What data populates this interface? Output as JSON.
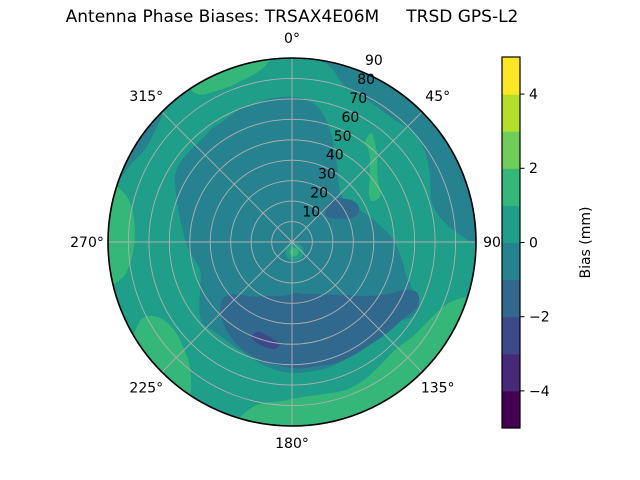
{
  "figure": {
    "background": "#ffffff"
  },
  "chart_data": {
    "type": "polar_contour",
    "title": "Antenna Phase Biases: TRSAX4E06M     TRSD GPS-L2",
    "angular_ticks": [
      {
        "deg": 0,
        "label": "0°"
      },
      {
        "deg": 45,
        "label": "45°"
      },
      {
        "deg": 90,
        "label": "90"
      },
      {
        "deg": 135,
        "label": "135°"
      },
      {
        "deg": 180,
        "label": "180°"
      },
      {
        "deg": 225,
        "label": "225°"
      },
      {
        "deg": 270,
        "label": "270°"
      },
      {
        "deg": 315,
        "label": "315°"
      }
    ],
    "radial_ticks": [
      {
        "value": 10,
        "label": "10"
      },
      {
        "value": 20,
        "label": "20"
      },
      {
        "value": 30,
        "label": "30"
      },
      {
        "value": 40,
        "label": "40"
      },
      {
        "value": 50,
        "label": "50"
      },
      {
        "value": 60,
        "label": "60"
      },
      {
        "value": 70,
        "label": "70"
      },
      {
        "value": 80,
        "label": "80"
      },
      {
        "value": 90,
        "label": "90"
      }
    ],
    "radial_max": 90,
    "radial_label_azimuth_deg": 22.5,
    "grid_color": "#b0b0b0",
    "outline_color": "#000000",
    "colorbar": {
      "label": "Bias (mm)",
      "min": -5,
      "max": 5,
      "ticks": [
        {
          "value": 4,
          "label": "4"
        },
        {
          "value": 2,
          "label": "2"
        },
        {
          "value": 0,
          "label": "0"
        },
        {
          "value": -2,
          "label": "−2"
        },
        {
          "value": -4,
          "label": "−4"
        }
      ],
      "segments_bottom_to_top": [
        {
          "range": "-5 to -4 mm",
          "color": "#440154"
        },
        {
          "range": "-4 to -3 mm",
          "color": "#482878"
        },
        {
          "range": "-3 to -2 mm",
          "color": "#3e4989"
        },
        {
          "range": "-2 to -1 mm",
          "color": "#31688e"
        },
        {
          "range": "-1 to 0 mm",
          "color": "#26828e"
        },
        {
          "range": "0 to 1 mm",
          "color": "#1f9e89"
        },
        {
          "range": "1 to 2 mm",
          "color": "#35b779"
        },
        {
          "range": "2 to 3 mm",
          "color": "#6ece58"
        },
        {
          "range": "3 to 4 mm",
          "color": "#b5de2b"
        },
        {
          "range": "4 to 5 mm",
          "color": "#fde725"
        }
      ]
    },
    "regions": [
      {
        "name": "base-disk",
        "value_range": "-1 to 0 mm",
        "color": "#26828e",
        "type": "disk"
      },
      {
        "name": "bright-ring",
        "value_range": "0 to 1 mm",
        "color": "#1f9e89",
        "type": "ring",
        "outer": [
          [
            0,
            90
          ],
          [
            8,
            90
          ],
          [
            13,
            87
          ],
          [
            18,
            81
          ],
          [
            25,
            79
          ],
          [
            32,
            78
          ],
          [
            40,
            78
          ],
          [
            48,
            80
          ],
          [
            55,
            79
          ],
          [
            62,
            76
          ],
          [
            68,
            73
          ],
          [
            74,
            71
          ],
          [
            80,
            73
          ],
          [
            85,
            78
          ],
          [
            89,
            85
          ],
          [
            93,
            90
          ],
          [
            115,
            90
          ],
          [
            140,
            90
          ],
          [
            165,
            90
          ],
          [
            190,
            90
          ],
          [
            215,
            90
          ],
          [
            240,
            90
          ],
          [
            265,
            90
          ],
          [
            285,
            90
          ],
          [
            294,
            88
          ],
          [
            299,
            86
          ],
          [
            303,
            85
          ],
          [
            308,
            86
          ],
          [
            313,
            88
          ],
          [
            318,
            90
          ],
          [
            330,
            90
          ],
          [
            342,
            90
          ],
          [
            352,
            90
          ]
        ],
        "inner": [
          [
            0,
            71
          ],
          [
            8,
            69
          ],
          [
            14,
            64
          ],
          [
            20,
            56
          ],
          [
            26,
            48
          ],
          [
            32,
            42
          ],
          [
            38,
            37
          ],
          [
            44,
            34
          ],
          [
            50,
            33
          ],
          [
            56,
            34
          ],
          [
            62,
            36
          ],
          [
            68,
            38
          ],
          [
            74,
            41
          ],
          [
            80,
            44
          ],
          [
            86,
            48
          ],
          [
            92,
            51
          ],
          [
            100,
            55
          ],
          [
            106,
            58
          ],
          [
            112,
            64
          ],
          [
            117,
            70
          ],
          [
            122,
            69
          ],
          [
            127,
            65
          ],
          [
            133,
            62
          ],
          [
            140,
            62
          ],
          [
            148,
            63
          ],
          [
            156,
            63
          ],
          [
            164,
            64
          ],
          [
            172,
            64
          ],
          [
            180,
            64
          ],
          [
            188,
            63
          ],
          [
            196,
            61
          ],
          [
            204,
            59
          ],
          [
            212,
            58
          ],
          [
            220,
            58
          ],
          [
            228,
            59
          ],
          [
            234,
            56
          ],
          [
            240,
            52
          ],
          [
            246,
            49
          ],
          [
            252,
            47
          ],
          [
            258,
            48
          ],
          [
            264,
            50
          ],
          [
            270,
            52
          ],
          [
            277,
            54
          ],
          [
            284,
            57
          ],
          [
            290,
            60
          ],
          [
            295,
            63
          ],
          [
            300,
            66
          ],
          [
            305,
            67
          ],
          [
            310,
            67
          ],
          [
            315,
            67
          ],
          [
            320,
            67
          ],
          [
            325,
            68
          ],
          [
            330,
            68
          ],
          [
            335,
            69
          ],
          [
            340,
            70
          ],
          [
            346,
            70
          ],
          [
            352,
            71
          ]
        ]
      },
      {
        "name": "blue-crescent",
        "value_range": "-2 to -1 mm",
        "color": "#31688e",
        "type": "blob",
        "points": [
          [
            112,
            66
          ],
          [
            116,
            69
          ],
          [
            120,
            68
          ],
          [
            125,
            66
          ],
          [
            130,
            65
          ],
          [
            136,
            64
          ],
          [
            144,
            63
          ],
          [
            152,
            63
          ],
          [
            160,
            63
          ],
          [
            168,
            62
          ],
          [
            176,
            62
          ],
          [
            184,
            61
          ],
          [
            192,
            60
          ],
          [
            200,
            59
          ],
          [
            208,
            57
          ],
          [
            216,
            54
          ],
          [
            224,
            50
          ],
          [
            230,
            45
          ],
          [
            230,
            40
          ],
          [
            224,
            36
          ],
          [
            216,
            33
          ],
          [
            208,
            30
          ],
          [
            200,
            28
          ],
          [
            192,
            27
          ],
          [
            184,
            26
          ],
          [
            176,
            25
          ],
          [
            168,
            26
          ],
          [
            160,
            27
          ],
          [
            152,
            29
          ],
          [
            144,
            32
          ],
          [
            136,
            36
          ],
          [
            130,
            41
          ],
          [
            124,
            47
          ],
          [
            118,
            54
          ],
          [
            113,
            60
          ]
        ]
      },
      {
        "name": "blue-blob-upper-right",
        "value_range": "-2 to -1 mm",
        "color": "#31688e",
        "type": "blob",
        "points": [
          [
            44,
            26
          ],
          [
            48,
            22
          ],
          [
            54,
            21
          ],
          [
            60,
            23
          ],
          [
            65,
            27
          ],
          [
            68,
            31
          ],
          [
            67,
            35
          ],
          [
            62,
            37
          ],
          [
            56,
            36
          ],
          [
            50,
            33
          ],
          [
            45,
            30
          ]
        ]
      },
      {
        "name": "dark-spot-bottom",
        "value_range": "-3 to -2 mm",
        "color": "#3e4989",
        "type": "blob",
        "points": [
          [
            187,
            50
          ],
          [
            192,
            48
          ],
          [
            197,
            47
          ],
          [
            201,
            47
          ],
          [
            203,
            50
          ],
          [
            200,
            52
          ],
          [
            194,
            53
          ],
          [
            189,
            53
          ]
        ]
      },
      {
        "name": "green-upper-left-rim",
        "value_range": "1 to 2 mm",
        "color": "#35b779",
        "type": "blob",
        "points": [
          [
            327,
            90
          ],
          [
            328,
            85
          ],
          [
            332,
            83
          ],
          [
            338,
            82
          ],
          [
            344,
            83
          ],
          [
            349,
            85
          ],
          [
            352,
            88
          ],
          [
            353,
            91
          ],
          [
            344,
            92
          ],
          [
            335,
            92
          ]
        ]
      },
      {
        "name": "green-upper-right-band",
        "value_range": "1 to 2 mm",
        "color": "#35b779",
        "type": "blob",
        "points": [
          [
            36,
            66
          ],
          [
            40,
            63
          ],
          [
            44,
            60
          ],
          [
            48,
            56
          ],
          [
            52,
            53
          ],
          [
            56,
            51
          ],
          [
            60,
            50
          ],
          [
            63,
            48
          ],
          [
            63,
            44
          ],
          [
            59,
            44
          ],
          [
            55,
            46
          ],
          [
            51,
            49
          ],
          [
            47,
            52
          ],
          [
            43,
            56
          ],
          [
            39,
            59
          ],
          [
            36,
            61
          ]
        ]
      },
      {
        "name": "green-bottom-rim-band",
        "value_range": "1 to 2 mm",
        "color": "#35b779",
        "type": "blob",
        "points": [
          [
            108,
            92
          ],
          [
            110,
            84
          ],
          [
            114,
            80
          ],
          [
            120,
            77
          ],
          [
            128,
            75
          ],
          [
            136,
            73
          ],
          [
            144,
            74
          ],
          [
            152,
            76
          ],
          [
            160,
            77
          ],
          [
            168,
            76
          ],
          [
            176,
            76
          ],
          [
            184,
            78
          ],
          [
            190,
            80
          ],
          [
            194,
            84
          ],
          [
            196,
            92
          ],
          [
            182,
            93
          ],
          [
            166,
            93
          ],
          [
            150,
            93
          ],
          [
            134,
            93
          ],
          [
            120,
            93
          ]
        ]
      },
      {
        "name": "green-lower-left-streak",
        "value_range": "1 to 2 mm",
        "color": "#35b779",
        "type": "blob",
        "points": [
          [
            214,
            91
          ],
          [
            216,
            84
          ],
          [
            220,
            78
          ],
          [
            226,
            74
          ],
          [
            232,
            72
          ],
          [
            238,
            73
          ],
          [
            242,
            77
          ],
          [
            243,
            82
          ],
          [
            241,
            87
          ],
          [
            238,
            91
          ],
          [
            230,
            92
          ],
          [
            222,
            92
          ]
        ]
      },
      {
        "name": "green-left-rim",
        "value_range": "1 to 2 mm",
        "color": "#35b779",
        "type": "blob",
        "points": [
          [
            257,
            91
          ],
          [
            258,
            85
          ],
          [
            261,
            81
          ],
          [
            266,
            78
          ],
          [
            272,
            77
          ],
          [
            278,
            78
          ],
          [
            283,
            81
          ],
          [
            286,
            85
          ],
          [
            287,
            91
          ],
          [
            279,
            92
          ],
          [
            269,
            93
          ],
          [
            262,
            92
          ]
        ]
      },
      {
        "name": "center-spot-outer",
        "value_range": "0 to 1 mm",
        "color": "#1f9e89",
        "type": "spot",
        "az": 165,
        "r": 5,
        "radius_units": 4.5
      },
      {
        "name": "center-spot-inner",
        "value_range": "1 to 2 mm",
        "color": "#35b779",
        "type": "spot",
        "az": 168,
        "r": 5,
        "radius_units": 2.2
      }
    ]
  }
}
